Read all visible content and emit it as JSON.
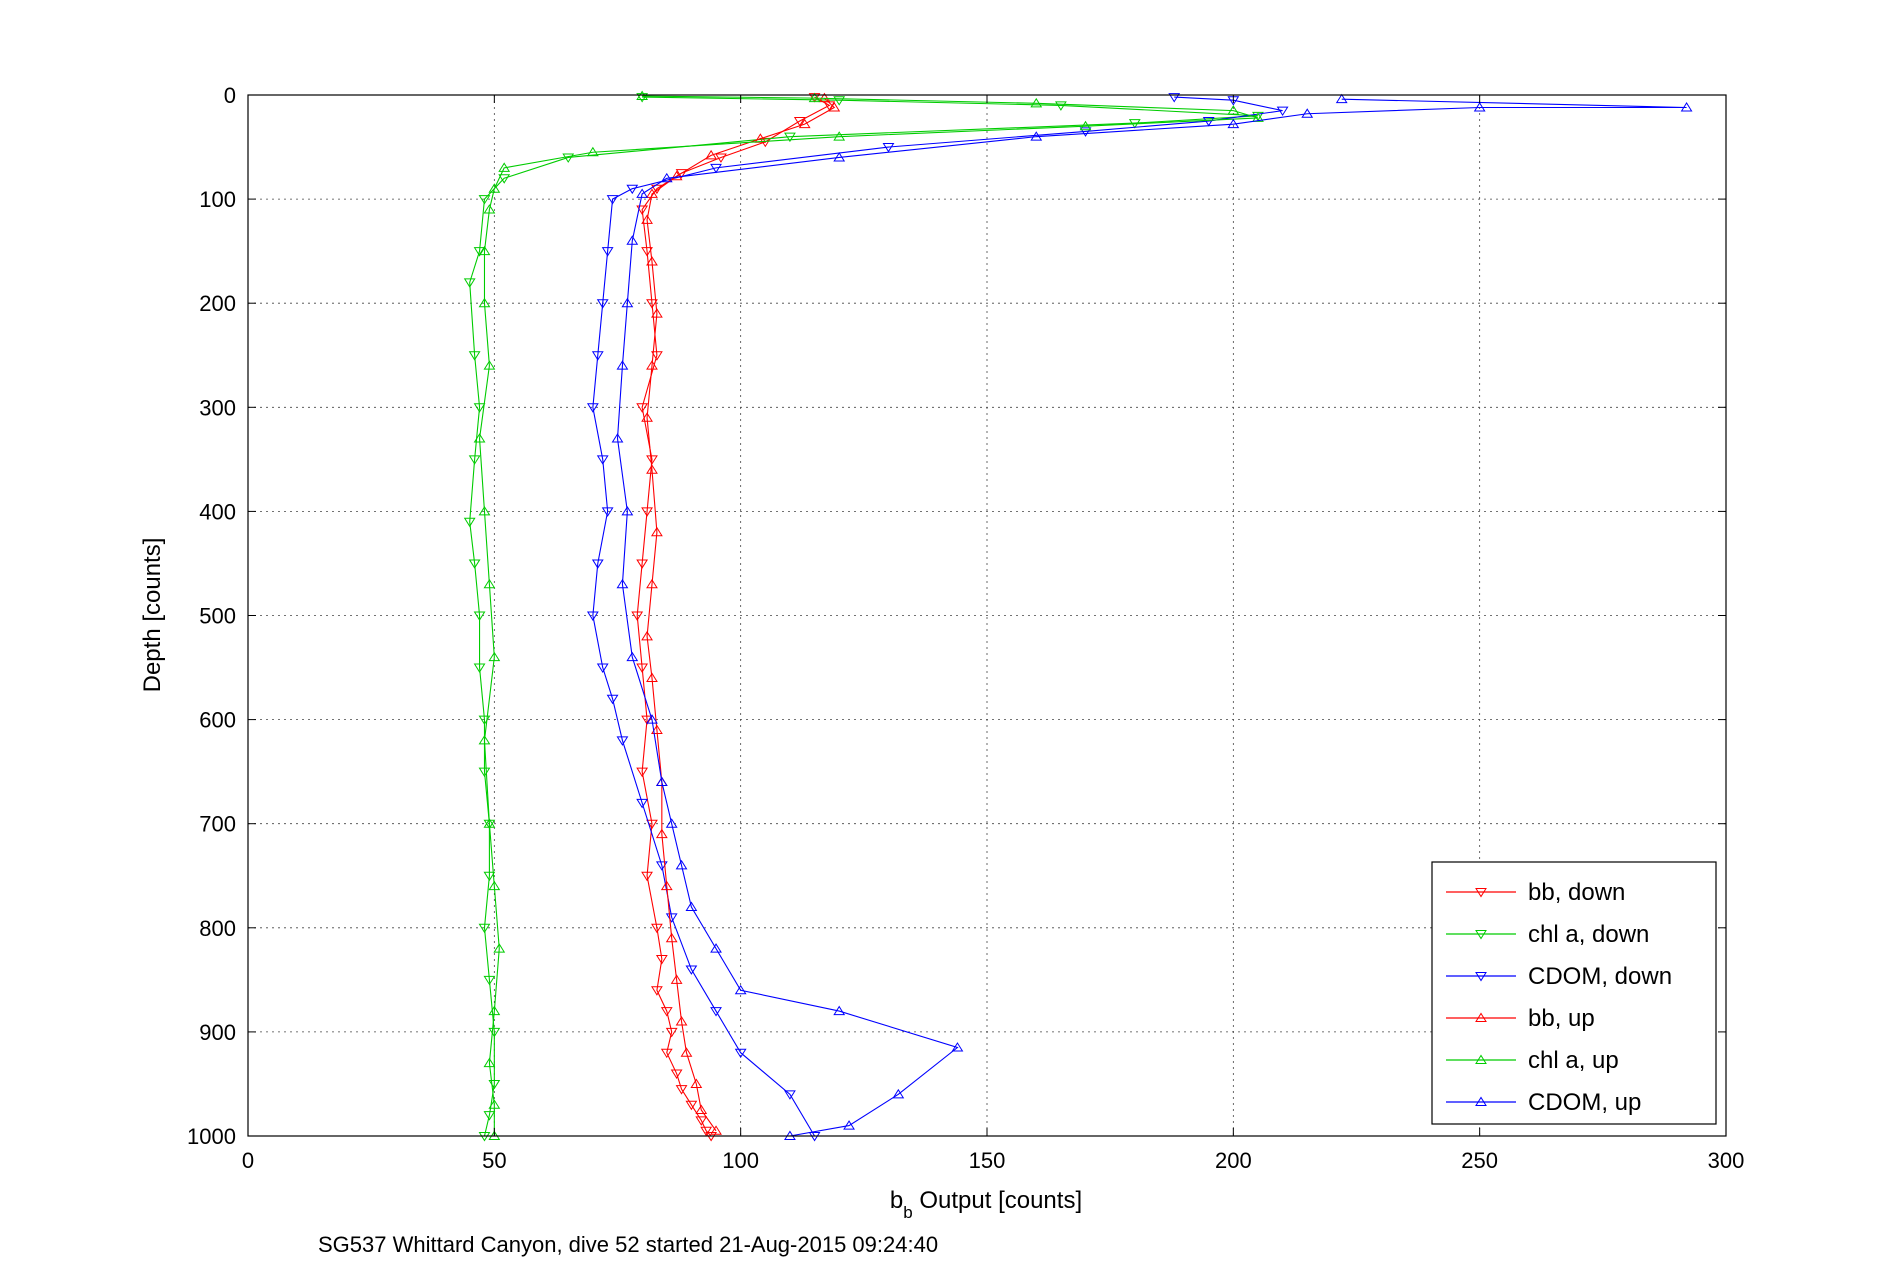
{
  "chart_data": {
    "type": "scatter",
    "title": "",
    "caption": "SG537 Whittard Canyon, dive 52 started 21-Aug-2015 09:24:40",
    "xlabel_main": "b",
    "xlabel_sub": "b",
    "xlabel_rest": " Output [counts]",
    "ylabel": "Depth [counts]",
    "xlim": [
      0,
      300
    ],
    "ylim": [
      0,
      1000
    ],
    "y_reversed": true,
    "grid": true,
    "legend_position": "bottom-right",
    "x_ticks": [
      "0",
      "50",
      "100",
      "150",
      "200",
      "250",
      "300"
    ],
    "y_ticks": [
      "0",
      "100",
      "200",
      "300",
      "400",
      "500",
      "600",
      "700",
      "800",
      "900",
      "1000"
    ],
    "colors": {
      "bb": "#ff0000",
      "chl": "#00cc00",
      "cdom": "#0000ff"
    },
    "series": [
      {
        "name": "bb, down",
        "color": "#ff0000",
        "marker": "triangle-down",
        "x": [
          115,
          118,
          112,
          105,
          96,
          88,
          83,
          80,
          81,
          82,
          83,
          80,
          82,
          81,
          80,
          79,
          80,
          81,
          80,
          82,
          81,
          83,
          84,
          83,
          85,
          86,
          85,
          87,
          88,
          90,
          92,
          93,
          94
        ],
        "y": [
          2,
          10,
          25,
          45,
          60,
          75,
          90,
          110,
          150,
          200,
          250,
          300,
          350,
          400,
          450,
          500,
          550,
          600,
          650,
          700,
          750,
          800,
          830,
          860,
          880,
          900,
          920,
          940,
          955,
          970,
          985,
          995,
          1000
        ]
      },
      {
        "name": "chl a, down",
        "color": "#00cc00",
        "marker": "triangle-down",
        "x": [
          80,
          120,
          165,
          205,
          180,
          110,
          65,
          52,
          48,
          47,
          45,
          46,
          47,
          46,
          45,
          46,
          47,
          47,
          48,
          48,
          49,
          49,
          48,
          49,
          50,
          50,
          49,
          48
        ],
        "y": [
          2,
          5,
          10,
          20,
          27,
          40,
          60,
          80,
          100,
          150,
          180,
          250,
          300,
          350,
          410,
          450,
          500,
          550,
          600,
          650,
          700,
          750,
          800,
          850,
          900,
          950,
          980,
          1000
        ]
      },
      {
        "name": "CDOM, down",
        "color": "#0000ff",
        "marker": "triangle-down",
        "x": [
          188,
          200,
          210,
          195,
          170,
          130,
          95,
          78,
          74,
          73,
          72,
          71,
          70,
          72,
          73,
          71,
          70,
          72,
          74,
          76,
          80,
          84,
          86,
          90,
          95,
          100,
          110,
          115
        ],
        "y": [
          2,
          5,
          15,
          25,
          35,
          50,
          70,
          90,
          100,
          150,
          200,
          250,
          300,
          350,
          400,
          450,
          500,
          550,
          580,
          620,
          680,
          740,
          790,
          840,
          880,
          920,
          960,
          1000
        ]
      },
      {
        "name": "bb, up",
        "color": "#ff0000",
        "marker": "triangle-up",
        "x": [
          117,
          119,
          113,
          104,
          94,
          87,
          82,
          81,
          82,
          83,
          82,
          81,
          82,
          83,
          82,
          81,
          82,
          83,
          84,
          84,
          85,
          86,
          87,
          88,
          89,
          91,
          92,
          95
        ],
        "y": [
          3,
          12,
          28,
          42,
          58,
          78,
          95,
          120,
          160,
          210,
          260,
          310,
          360,
          420,
          470,
          520,
          560,
          610,
          660,
          710,
          760,
          810,
          850,
          890,
          920,
          950,
          975,
          995
        ]
      },
      {
        "name": "chl a, up",
        "color": "#00cc00",
        "marker": "triangle-up",
        "x": [
          80,
          115,
          160,
          200,
          205,
          170,
          120,
          70,
          52,
          50,
          49,
          48,
          48,
          49,
          47,
          48,
          49,
          50,
          48,
          49,
          50,
          51,
          50,
          49,
          50,
          50
        ],
        "y": [
          1,
          3,
          8,
          15,
          22,
          30,
          40,
          55,
          70,
          90,
          110,
          150,
          200,
          260,
          330,
          400,
          470,
          540,
          620,
          700,
          760,
          820,
          880,
          930,
          970,
          1000
        ]
      },
      {
        "name": "CDOM, up",
        "color": "#0000ff",
        "marker": "triangle-up",
        "x": [
          222,
          292,
          250,
          215,
          200,
          160,
          120,
          85,
          80,
          78,
          77,
          76,
          75,
          77,
          76,
          78,
          82,
          84,
          86,
          88,
          90,
          95,
          100,
          120,
          144,
          132,
          122,
          110
        ],
        "y": [
          4,
          12,
          12,
          18,
          28,
          40,
          60,
          80,
          95,
          140,
          200,
          260,
          330,
          400,
          470,
          540,
          600,
          660,
          700,
          740,
          780,
          820,
          860,
          880,
          915,
          960,
          990,
          1000
        ]
      }
    ]
  }
}
